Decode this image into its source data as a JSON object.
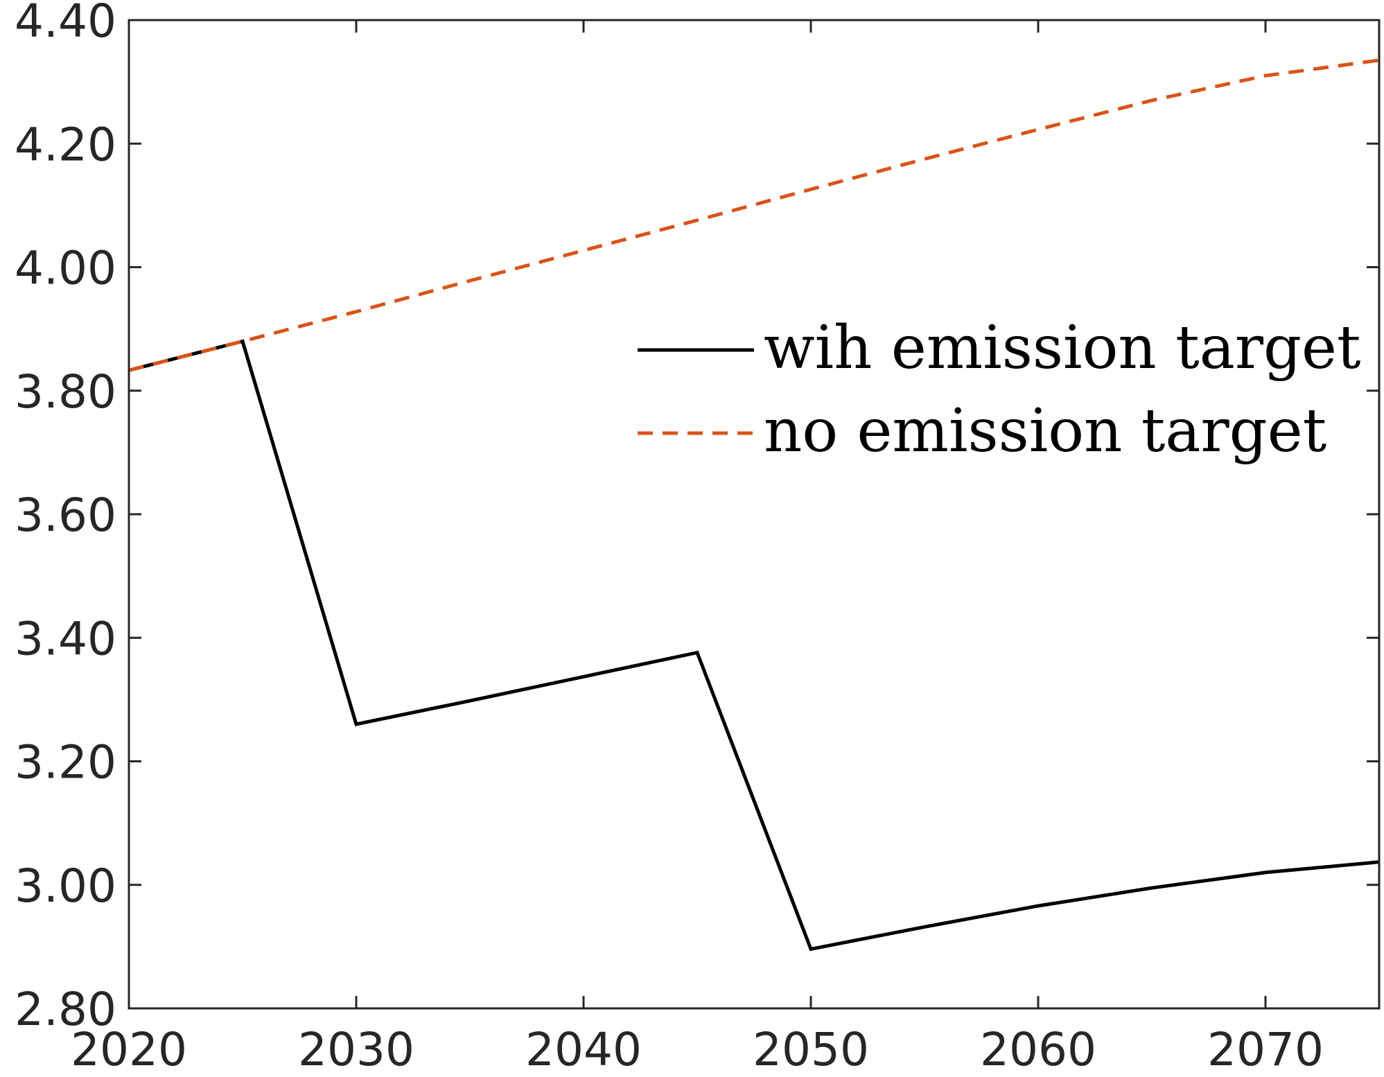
{
  "chart_data": {
    "type": "line",
    "title": "",
    "xlabel": "",
    "ylabel": "",
    "xlim": [
      2020,
      2075
    ],
    "ylim": [
      2.8,
      4.4
    ],
    "xticks": [
      2020,
      2030,
      2040,
      2050,
      2060,
      2070
    ],
    "xtick_labels": [
      "2020",
      "2030",
      "2040",
      "2050",
      "2060",
      "2070"
    ],
    "yticks": [
      2.8,
      3.0,
      3.2,
      3.4,
      3.6,
      3.8,
      4.0,
      4.2,
      4.4
    ],
    "ytick_labels": [
      "2.80",
      "3.00",
      "3.20",
      "3.40",
      "3.60",
      "3.80",
      "4.00",
      "4.20",
      "4.40"
    ],
    "grid": false,
    "legend_position": "center-right",
    "series": [
      {
        "name": "wih emission target",
        "color": "#000000",
        "style": "solid",
        "x": [
          2020,
          2025,
          2030,
          2035,
          2040,
          2045,
          2050,
          2055,
          2060,
          2065,
          2070,
          2075
        ],
        "y": [
          3.833,
          3.88,
          3.26,
          3.298,
          3.337,
          3.376,
          2.896,
          2.932,
          2.966,
          2.995,
          3.02,
          3.037
        ]
      },
      {
        "name": "no emission target",
        "color": "#D95319",
        "style": "dashed",
        "x": [
          2020,
          2025,
          2030,
          2035,
          2040,
          2045,
          2050,
          2055,
          2060,
          2065,
          2070,
          2075
        ],
        "y": [
          3.833,
          3.88,
          3.928,
          3.978,
          4.027,
          4.076,
          4.126,
          4.175,
          4.223,
          4.27,
          4.31,
          4.335
        ]
      }
    ]
  }
}
